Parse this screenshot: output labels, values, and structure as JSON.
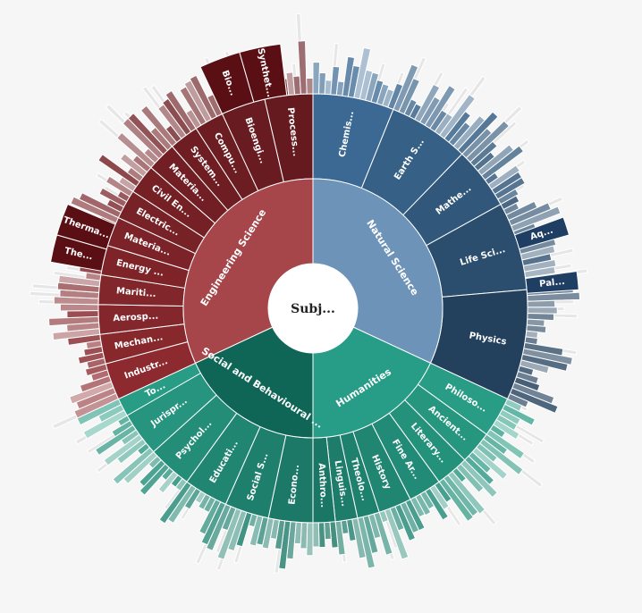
{
  "chart_data": {
    "type": "sunburst",
    "title": "",
    "root": {
      "label": "Subj..."
    },
    "colors": {
      "engineering": "#7a1d22",
      "natural": "#3e6d98",
      "humanities": "#1a8f79",
      "ring_line": "#ffffff",
      "faded": "#e6e6e6"
    },
    "categories": [
      {
        "key": "natural",
        "label": "Natural Science",
        "start": 0,
        "end": 115,
        "children": [
          {
            "label": "Chemis...",
            "start": 0,
            "end": 22,
            "dark": 0.05
          },
          {
            "label": "Earth S...",
            "start": 22,
            "end": 44,
            "dark": 0.18
          },
          {
            "label": "Mathe...",
            "start": 44,
            "end": 61,
            "dark": 0.3
          },
          {
            "label": "Life Sci...",
            "start": 61,
            "end": 85,
            "dark": 0.42
          },
          {
            "label": "Physics",
            "start": 85,
            "end": 115,
            "dark": 0.6
          }
        ]
      },
      {
        "key": "humanities",
        "label": "Humanities",
        "start": 115,
        "end": 180,
        "children": [
          {
            "label": "Philoso...",
            "start": 115,
            "end": 126,
            "dark": 0.05
          },
          {
            "label": "Ancient...",
            "start": 126,
            "end": 135,
            "dark": 0.12
          },
          {
            "label": "Literary...",
            "start": 135,
            "end": 144,
            "dark": 0.18
          },
          {
            "label": "Fine Ar...",
            "start": 144,
            "end": 153,
            "dark": 0.24
          },
          {
            "label": "History",
            "start": 153,
            "end": 162,
            "dark": 0.3
          },
          {
            "label": "Theolo...",
            "start": 162,
            "end": 168,
            "dark": 0.36
          },
          {
            "label": "Linguis...",
            "start": 168,
            "end": 174,
            "dark": 0.42
          },
          {
            "label": "Anthro...",
            "start": 174,
            "end": 180,
            "dark": 0.48
          }
        ]
      },
      {
        "key": "humanities",
        "label": "Social and Behavioural ...",
        "start": 180,
        "end": 245,
        "children": [
          {
            "label": "Econo...",
            "start": 180,
            "end": 192,
            "dark": 0.45
          },
          {
            "label": "Social S...",
            "start": 192,
            "end": 204,
            "dark": 0.38
          },
          {
            "label": "Educati...",
            "start": 204,
            "end": 216,
            "dark": 0.3
          },
          {
            "label": "Psychol...",
            "start": 216,
            "end": 228,
            "dark": 0.22
          },
          {
            "label": "Jurispr...",
            "start": 228,
            "end": 240,
            "dark": 0.14
          },
          {
            "label": "To...",
            "start": 240,
            "end": 245,
            "dark": 0.05
          }
        ]
      },
      {
        "key": "engineering",
        "label": "Engineering Science",
        "start": 245,
        "end": 360,
        "children": [
          {
            "label": "Industr...",
            "start": 245,
            "end": 255,
            "dark": 0.0
          },
          {
            "label": "Mechan...",
            "start": 255,
            "end": 263,
            "dark": 0.06
          },
          {
            "label": "Aerosp...",
            "start": 263,
            "end": 271,
            "dark": 0.1
          },
          {
            "label": "Mariti...",
            "start": 271,
            "end": 279,
            "dark": 0.14
          },
          {
            "label": "Energy ...",
            "start": 279,
            "end": 287,
            "dark": 0.18
          },
          {
            "label": "Materia...",
            "start": 287,
            "end": 295,
            "dark": 0.22
          },
          {
            "label": "Electric...",
            "start": 295,
            "end": 303,
            "dark": 0.26
          },
          {
            "label": "Civil En...",
            "start": 303,
            "end": 311,
            "dark": 0.3
          },
          {
            "label": "Materia...",
            "start": 311,
            "end": 319,
            "dark": 0.34
          },
          {
            "label": "System...",
            "start": 319,
            "end": 327,
            "dark": 0.38
          },
          {
            "label": "Compu...",
            "start": 327,
            "end": 335,
            "dark": 0.42
          },
          {
            "label": "Bioengi...",
            "start": 335,
            "end": 347,
            "dark": 0.46
          },
          {
            "label": "Process...",
            "start": 347,
            "end": 360,
            "dark": 0.5
          }
        ]
      }
    ],
    "outer_labels": [
      {
        "label": "Bio...",
        "start": 335,
        "end": 344,
        "category": "engineering"
      },
      {
        "label": "Synthet...",
        "start": 344,
        "end": 353,
        "category": "engineering"
      },
      {
        "label": "The...",
        "start": 280,
        "end": 286,
        "category": "engineering"
      },
      {
        "label": "Therma...",
        "start": 286,
        "end": 293,
        "category": "engineering"
      },
      {
        "label": "Aq...",
        "start": 70,
        "end": 74,
        "category": "natural"
      },
      {
        "label": "Pal...",
        "start": 82,
        "end": 86,
        "category": "natural"
      }
    ]
  }
}
